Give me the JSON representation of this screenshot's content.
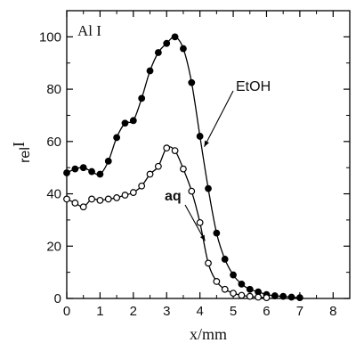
{
  "chart_data": {
    "type": "scatter",
    "title": "",
    "panel_label": "Al I",
    "xlabel": "x/mm",
    "ylabel_main": "I",
    "ylabel_sub": "rel",
    "xlim": [
      0,
      8.5
    ],
    "ylim": [
      0,
      110
    ],
    "xticks": [
      0,
      1,
      2,
      3,
      4,
      5,
      6,
      7,
      8
    ],
    "yticks": [
      0,
      20,
      40,
      60,
      80,
      100
    ],
    "grid": false,
    "legend": "none",
    "series": [
      {
        "name": "EtOH",
        "marker": "filled-circle",
        "color": "#000000",
        "x": [
          0.0,
          0.25,
          0.5,
          0.75,
          1.0,
          1.25,
          1.5,
          1.75,
          2.0,
          2.25,
          2.5,
          2.75,
          3.0,
          3.25,
          3.5,
          3.75,
          4.0,
          4.25,
          4.5,
          4.75,
          5.0,
          5.25,
          5.5,
          5.75,
          6.0,
          6.25,
          6.5,
          6.75,
          7.0
        ],
        "y": [
          48,
          49.5,
          50,
          48.5,
          47.5,
          52.5,
          61.5,
          67,
          68,
          76.5,
          87,
          94,
          97.5,
          100,
          95.5,
          82.5,
          62,
          42,
          25,
          15,
          9,
          5.5,
          3.5,
          2.5,
          1.5,
          1,
          0.8,
          0.5,
          0.3
        ]
      },
      {
        "name": "aq",
        "marker": "open-circle",
        "color": "#000000",
        "x": [
          0.0,
          0.25,
          0.5,
          0.75,
          1.0,
          1.25,
          1.5,
          1.75,
          2.0,
          2.25,
          2.5,
          2.75,
          3.0,
          3.25,
          3.5,
          3.75,
          4.0,
          4.25,
          4.5,
          4.75,
          5.0,
          5.25,
          5.5,
          5.75,
          6.0
        ],
        "y": [
          38,
          36.5,
          35,
          38,
          37.5,
          38,
          38.5,
          39.5,
          40.5,
          43,
          47.5,
          50.5,
          57.5,
          56.5,
          49.5,
          41,
          29,
          13.5,
          6.5,
          3.5,
          2,
          1.2,
          0.8,
          0.5,
          0.3
        ]
      }
    ],
    "annotations": [
      {
        "text": "EtOH",
        "series": "EtOH"
      },
      {
        "text": "aq",
        "series": "aq"
      }
    ]
  }
}
